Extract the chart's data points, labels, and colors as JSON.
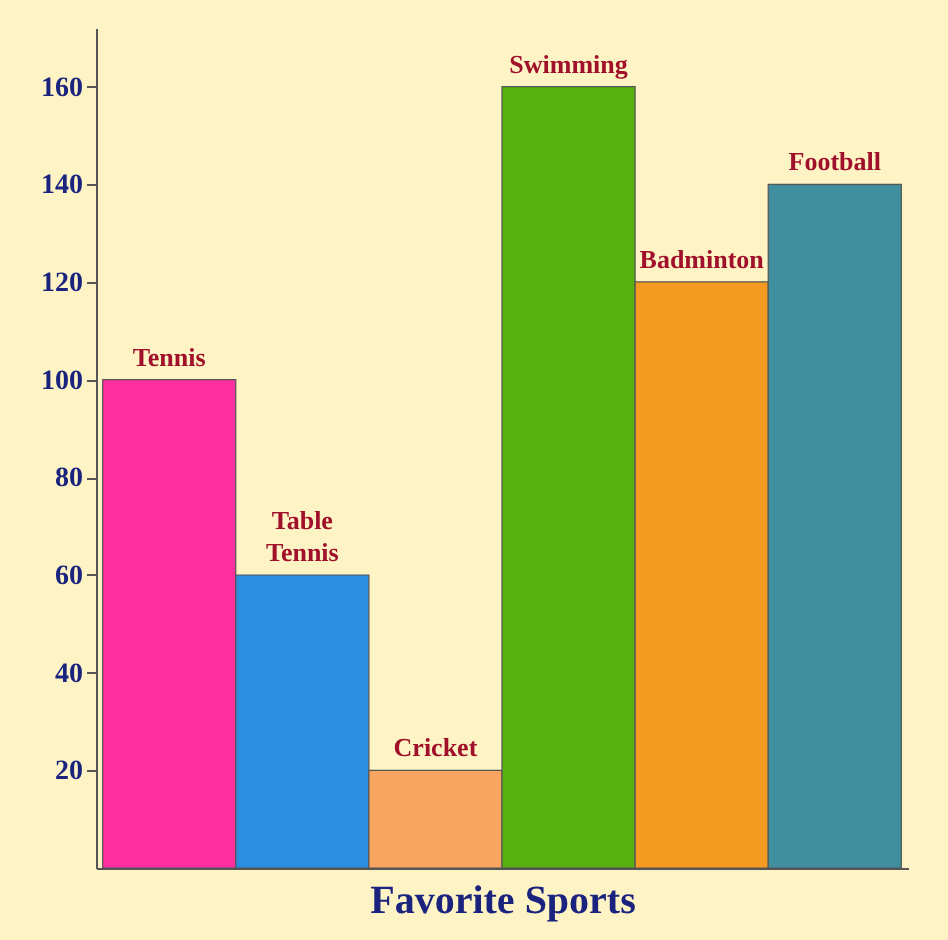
{
  "chart_data": {
    "type": "bar",
    "xlabel": "Favorite Sports",
    "categories": [
      "Tennis",
      "Table Tennis",
      "Cricket",
      "Swimming",
      "Badminton",
      "Football"
    ],
    "values": [
      100,
      60,
      20,
      160,
      120,
      140
    ],
    "colors": [
      "#ff2fa0",
      "#2a8fe0",
      "#f7a560",
      "#55b010",
      "#f59a20",
      "#3f8f9f"
    ],
    "ylim": [
      0,
      172
    ],
    "yticks": [
      20,
      40,
      60,
      80,
      100,
      120,
      140,
      160
    ],
    "grid": false,
    "tick_labels": "y"
  }
}
